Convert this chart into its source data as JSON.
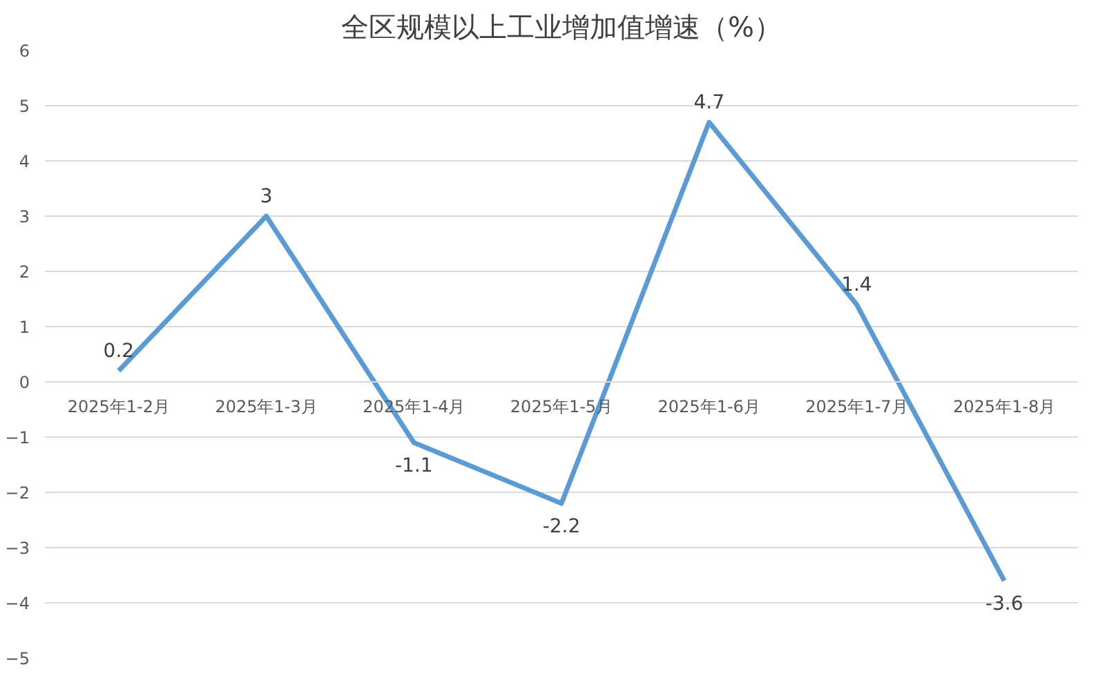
{
  "chart_data": {
    "type": "line",
    "title": "全区规模以上工业增加值增速（%）",
    "categories": [
      "2025年1-2月",
      "2025年1-3月",
      "2025年1-4月",
      "2025年1-5月",
      "2025年1-6月",
      "2025年1-7月",
      "2025年1-8月"
    ],
    "series": [
      {
        "color": "#5b9bd5",
        "values": [
          0.2,
          3,
          -1.1,
          -2.2,
          4.7,
          1.4,
          -3.6
        ]
      }
    ],
    "ylim": [
      -5,
      6
    ],
    "yticks": [
      -5,
      -4,
      -3,
      -2,
      -1,
      0,
      1,
      2,
      3,
      4,
      5,
      6
    ],
    "grid": "y",
    "data_labels": true,
    "marker": "none",
    "line_style": "solid"
  }
}
